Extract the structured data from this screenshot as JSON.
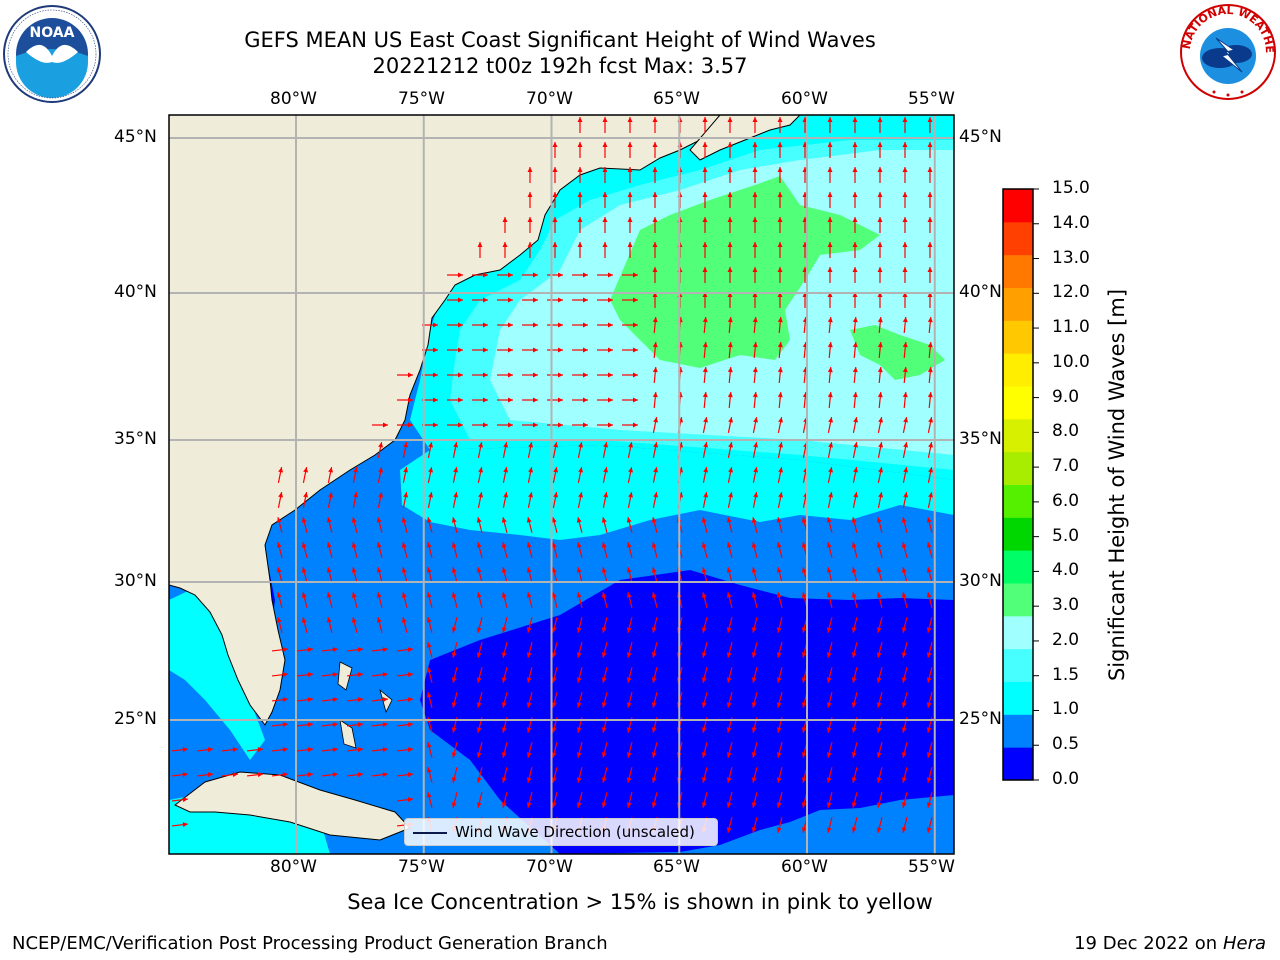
{
  "title": "GEFS MEAN US East Coast Significant Height of Wind Waves",
  "subtitle": "20221212 t00z 192h fcst   Max: 3.57",
  "map": {
    "lon_labels": [
      "80°W",
      "75°W",
      "70°W",
      "65°W",
      "60°W",
      "55°W"
    ],
    "lat_labels": [
      "45°N",
      "40°N",
      "35°N",
      "30°N",
      "25°N"
    ],
    "lon_range": [
      -85,
      -54
    ],
    "lat_range": [
      20.5,
      46
    ],
    "land_color": "#efedda",
    "grid_color": "#b3b3b3",
    "arrow_color": "#ff0000",
    "legend_label": "Wind Wave Direction (unscaled)"
  },
  "colorbar": {
    "title": "Significant Height of Wind Waves [m]",
    "ticks": [
      "15.0",
      "14.0",
      "13.0",
      "12.0",
      "11.0",
      "10.0",
      "9.0",
      "8.0",
      "7.0",
      "6.0",
      "5.0",
      "4.0",
      "3.0",
      "2.0",
      "1.5",
      "1.0",
      "0.5",
      "0.0"
    ],
    "colors": [
      "#0000ff",
      "#0082ff",
      "#00ffff",
      "#48ffff",
      "#a0ffff",
      "#52ff78",
      "#00ff66",
      "#00d700",
      "#55f000",
      "#a8ec00",
      "#d7f000",
      "#ffff00",
      "#ffee00",
      "#ffc800",
      "#ff9f00",
      "#ff7800",
      "#ff4000",
      "#ff0000"
    ]
  },
  "logos": {
    "noaa": "NOAA",
    "nws_text": "NATIONAL WEATHER SERVICE"
  },
  "sea_ice_note": "Sea Ice Concentration > 15% is shown in pink to yellow",
  "footer": {
    "left": "NCEP/EMC/Verification Post Processing Product Generation Branch",
    "right_date": "19 Dec 2022 on",
    "right_host": "Hera"
  }
}
